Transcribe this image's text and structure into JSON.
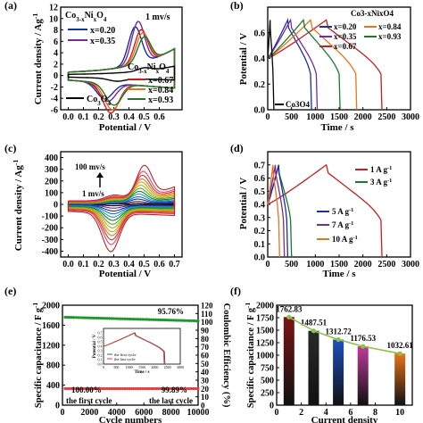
{
  "chart_data": [
    {
      "id": "a",
      "type": "line",
      "panel_label": "(a)",
      "xlabel": "Potential / V",
      "ylabel": "Current density / Ag",
      "ylabel_sup": "-1",
      "annotation": "1 mv/s",
      "xlim": [
        -0.05,
        0.75
      ],
      "ylim": [
        -6,
        12
      ],
      "xticks": [
        "0.0",
        "0.1",
        "0.2",
        "0.3",
        "0.4",
        "0.5",
        "0.6"
      ],
      "yticks": [
        "-6",
        "-4",
        "-2",
        "0",
        "2",
        "4",
        "6",
        "8",
        "10",
        "12"
      ],
      "legend_title_1": "Co",
      "legend_title_1_sub": "3-x",
      "legend_title_1_rest": "Ni",
      "legend_title_1_sub2": "x",
      "legend_title_1_o": "O",
      "legend_title_1_sub3": "4",
      "series": [
        {
          "name": "x=0.20",
          "color": "#1b2f9e",
          "ox": 0.44,
          "oa": 6.6,
          "rx": 0.24,
          "ra": -2.8
        },
        {
          "name": "x=0.35",
          "color": "#7a2a9a",
          "ox": 0.46,
          "oa": 7.4,
          "rx": 0.26,
          "ra": -3.2
        },
        {
          "name": "x=0.67",
          "color": "#c81e1e",
          "ox": 0.48,
          "oa": 5.8,
          "rx": 0.28,
          "ra": -5.2
        },
        {
          "name": "x=0.84",
          "color": "#e8741c",
          "ox": 0.49,
          "oa": 5.2,
          "rx": 0.29,
          "ra": -4.6
        },
        {
          "name": "x=0.93",
          "color": "#1a7a2a",
          "ox": 0.5,
          "oa": 4.4,
          "rx": 0.3,
          "ra": -3.8
        },
        {
          "name": "Co3O4",
          "color": "#000000",
          "ox": 0.5,
          "oa": 1.5,
          "rx": 0.32,
          "ra": -1.4
        }
      ],
      "legend_co3o4": "Co",
      "legend_co3o4_sub": "3",
      "legend_co3o4_o": "O",
      "legend_co3o4_sub2": "4"
    },
    {
      "id": "b",
      "type": "line",
      "panel_label": "(b)",
      "xlabel": "Time / s",
      "ylabel": "Potential / V",
      "xlim": [
        0,
        3000
      ],
      "ylim": [
        0,
        0.8
      ],
      "xticks": [
        "0",
        "500",
        "1000",
        "1500",
        "2000",
        "2500",
        "3000"
      ],
      "yticks": [
        "0.0",
        "0.2",
        "0.4",
        "0.6"
      ],
      "legend_title": "Co3-xNixO4",
      "series": [
        {
          "name": "x=0.20",
          "color": "#1b2f9e",
          "charge_end": 420,
          "discharge_end": 900
        },
        {
          "name": "x=0.35",
          "color": "#7a2a9a",
          "charge_end": 480,
          "discharge_end": 1020
        },
        {
          "name": "x=0.67",
          "color": "#c81e1e",
          "charge_end": 1230,
          "discharge_end": 2380
        },
        {
          "name": "x=0.84",
          "color": "#e8741c",
          "charge_end": 900,
          "discharge_end": 1850
        },
        {
          "name": "x=0.93",
          "color": "#1a7a2a",
          "charge_end": 750,
          "discharge_end": 1500
        },
        {
          "name": "Co3O4",
          "color": "#000000",
          "charge_end": 50,
          "discharge_end": 110
        }
      ]
    },
    {
      "id": "c",
      "type": "line",
      "panel_label": "(c)",
      "xlabel": "Potential / V",
      "ylabel": "Current density / Ag",
      "ylabel_sup": "-1",
      "annotation_top": "100 mv/s",
      "annotation_bottom": "1 mv/s",
      "xlim": [
        -0.05,
        0.75
      ],
      "ylim": [
        -450,
        450
      ],
      "xticks": [
        "0.0",
        "0.1",
        "0.2",
        "0.3",
        "0.4",
        "0.5",
        "0.6",
        "0.7"
      ],
      "yticks": [
        "-400",
        "-300",
        "-200",
        "-100",
        "0",
        "100",
        "200",
        "300",
        "400"
      ],
      "series_scale": [
        0.03,
        0.08,
        0.14,
        0.2,
        0.27,
        0.34,
        0.42,
        0.5,
        0.58,
        0.66,
        0.75,
        0.85,
        1.0
      ],
      "series_colors": [
        "#000000",
        "#5a2d8c",
        "#1b2f9e",
        "#1f6fc0",
        "#18a3b5",
        "#1a7a2a",
        "#5aa02c",
        "#9bb81c",
        "#d4a017",
        "#e8741c",
        "#c0392b",
        "#e0457b",
        "#c81e1e"
      ]
    },
    {
      "id": "d",
      "type": "line",
      "panel_label": "(d)",
      "xlabel": "Time / s",
      "ylabel": "Potential / V",
      "xlim": [
        0,
        3000
      ],
      "ylim": [
        0,
        0.8
      ],
      "xticks": [
        "0",
        "500",
        "1000",
        "1500",
        "2000",
        "2500",
        "3000"
      ],
      "yticks": [
        "0.0",
        "0.1",
        "0.2",
        "0.3",
        "0.4",
        "0.5",
        "0.6",
        "0.7"
      ],
      "series": [
        {
          "name": "1 A g",
          "sup": "-1",
          "color": "#c81e1e",
          "charge_end": 1230,
          "discharge_end": 2380
        },
        {
          "name": "3 A g",
          "sup": "-1",
          "color": "#1a7a2a",
          "charge_end": 230,
          "discharge_end": 480
        },
        {
          "name": "5 A g",
          "sup": "-1",
          "color": "#1b2f9e",
          "charge_end": 230,
          "discharge_end": 400
        },
        {
          "name": "7 A g",
          "sup": "-1",
          "color": "#7a2a9a",
          "charge_end": 160,
          "discharge_end": 330
        },
        {
          "name": "10 A g",
          "sup": "-1",
          "color": "#e8741c",
          "charge_end": 110,
          "discharge_end": 230
        }
      ]
    },
    {
      "id": "e",
      "type": "scatter",
      "panel_label": "(e)",
      "xlabel": "Cycle numbers",
      "ylabel_left": "Specific capacitance / F g",
      "ylabel_left_sup": "-1",
      "ylabel_right": "Coulombic Efficiency (%)",
      "xlim": [
        0,
        10000
      ],
      "ylim_left": [
        0,
        2000
      ],
      "xticks": [
        "0",
        "2000",
        "4000",
        "6000",
        "8000",
        "10000"
      ],
      "yticks_left": [
        "0",
        "400",
        "800",
        "1200",
        "1600",
        "2000"
      ],
      "yticks_right": [
        "120",
        "110",
        "100",
        "90",
        "80",
        "70",
        "60",
        "50",
        "40",
        "30",
        "20",
        "10",
        "0"
      ],
      "capacitance_start": 1760,
      "capacitance_end": 1685,
      "capacitance_retention": "95.76%",
      "efficiency_first": "100.00%",
      "efficiency_last": "99.89%",
      "efficiency_value": 330,
      "label_first": "the first cycle",
      "label_last": "the last cycle",
      "inset": {
        "xlabel": "Time / s",
        "ylabel": "Potential / V",
        "xticks": [
          "0",
          "500",
          "1000",
          "1500",
          "2000",
          "2500",
          "3000"
        ],
        "yticks": [
          "0.0",
          "0.1",
          "0.2",
          "0.3",
          "0.4",
          "0.5",
          "0.6",
          "0.7"
        ],
        "legend": [
          "the first cycle",
          "the last cycle"
        ]
      }
    },
    {
      "id": "f",
      "type": "bar",
      "panel_label": "(f)",
      "xlabel": "Current density",
      "ylabel": "Specific capacitance / F g",
      "ylabel_sup": "-1",
      "categories": [
        1,
        3,
        5,
        7,
        10
      ],
      "values": [
        1762.83,
        1487.51,
        1312.72,
        1176.53,
        1032.61
      ],
      "value_labels": [
        "1762.83",
        "1487.51",
        "1312.72",
        "1176.53",
        "1032.61"
      ],
      "colors": [
        "#7a1414",
        "#2a2a2a",
        "#1f4fc0",
        "#c03a9a",
        "#e8741c"
      ],
      "xlim": [
        0,
        11
      ],
      "xticks": [
        "0",
        "2",
        "4",
        "6",
        "8",
        "10"
      ],
      "ylim": [
        0,
        2000
      ],
      "yticks": [
        "0",
        "250",
        "500",
        "750",
        "1000",
        "1250",
        "1500",
        "1750",
        "2000"
      ],
      "line_color": "#8fc04a"
    }
  ]
}
